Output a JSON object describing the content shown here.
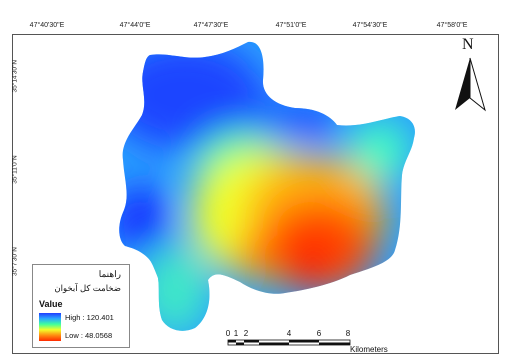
{
  "map": {
    "top_ticks": [
      "47°40'30\"E",
      "47°44'0\"E",
      "47°47'30\"E",
      "47°51'0\"E",
      "47°54'30\"E",
      "47°58'0\"E"
    ],
    "left_ticks": [
      "35°14'30\"N",
      "35°11'0\"N",
      "35°7'30\"N"
    ],
    "north_label": "N",
    "legend": {
      "title": "راهنما",
      "subtitle": "ضخامت کل آبخوان",
      "value_label": "Value",
      "high_label": "High : 120.401",
      "low_label": "Low : 48.0568",
      "high": 120.401,
      "low": 48.0568,
      "colors": [
        "#1f3dff",
        "#2aa7ff",
        "#3fff9e",
        "#f2ff2a",
        "#ff8b10",
        "#ff2a00"
      ]
    },
    "scale_bar": {
      "ticks": [
        "0",
        "1",
        "2",
        "4",
        "6",
        "8"
      ],
      "unit": "Kilometers"
    }
  }
}
